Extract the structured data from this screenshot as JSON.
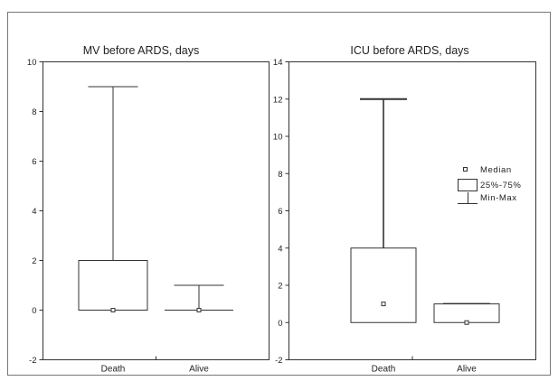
{
  "chart_data": [
    {
      "type": "box",
      "title": "MV before ARDS, days",
      "xlabel": "",
      "ylabel": "",
      "categories": [
        "Death",
        "Alive"
      ],
      "ylim": [
        -2,
        10
      ],
      "yticks": [
        -2,
        0,
        2,
        4,
        6,
        8,
        10
      ],
      "boxes": [
        {
          "category": "Death",
          "min": 0,
          "q1": 0,
          "median": 0,
          "q3": 2,
          "max": 9
        },
        {
          "category": "Alive",
          "min": 0,
          "q1": 0,
          "median": 0,
          "q3": 0,
          "max": 1
        }
      ]
    },
    {
      "type": "box",
      "title": "ICU before ARDS, days",
      "xlabel": "",
      "ylabel": "",
      "categories": [
        "Death",
        "Alive"
      ],
      "ylim": [
        -2,
        14
      ],
      "yticks": [
        -2,
        0,
        2,
        4,
        6,
        8,
        10,
        12,
        14
      ],
      "boxes": [
        {
          "category": "Death",
          "min": 0,
          "q1": 0,
          "median": 1,
          "q3": 4,
          "max": 12
        },
        {
          "category": "Alive",
          "min": 0,
          "q1": 0,
          "median": 0,
          "q3": 1,
          "max": 1
        }
      ],
      "legend": {
        "placement": "right",
        "entries": [
          "Median",
          "25%-75%",
          "Min-Max"
        ]
      }
    }
  ]
}
